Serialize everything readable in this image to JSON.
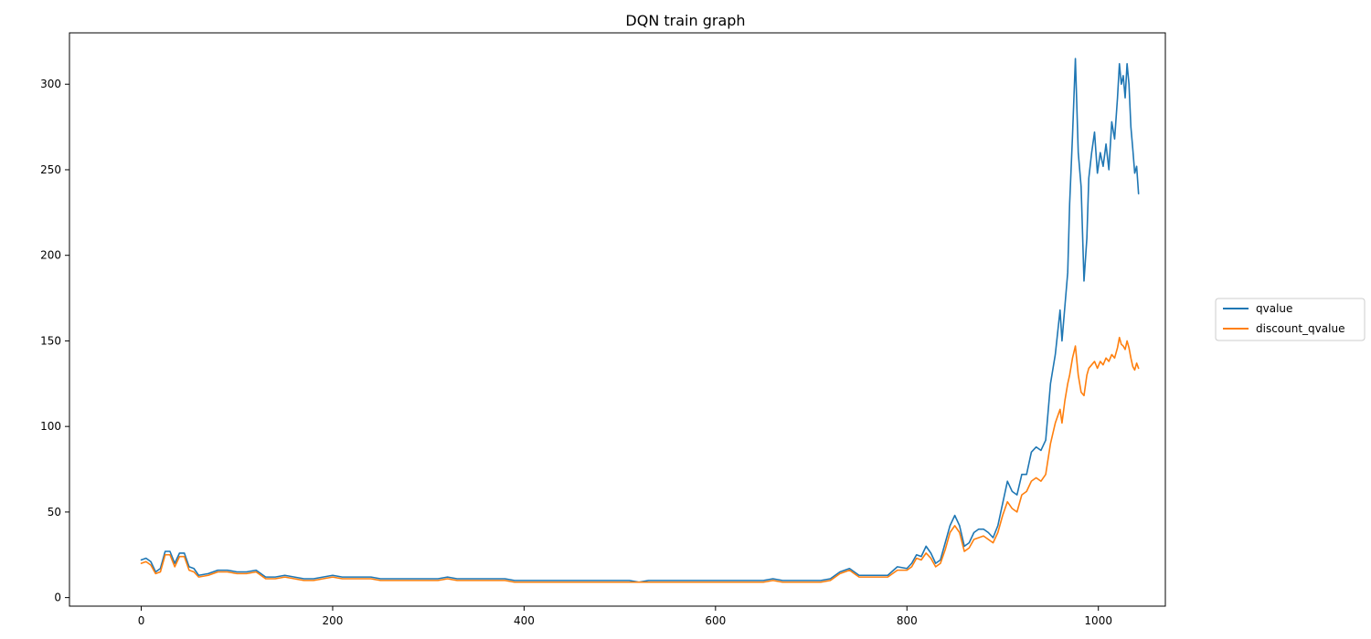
{
  "chart_data": {
    "type": "line",
    "title": "DQN train graph",
    "xlabel": "",
    "ylabel": "",
    "xlim": [
      -75,
      1070
    ],
    "ylim": [
      -5,
      330
    ],
    "xticks": [
      0,
      200,
      400,
      600,
      800,
      1000
    ],
    "yticks": [
      0,
      50,
      100,
      150,
      200,
      250,
      300
    ],
    "grid": false,
    "legend_position": "right, outside plot",
    "series": [
      {
        "name": "qvalue",
        "color": "#1f77b4",
        "points": [
          [
            0,
            22
          ],
          [
            5,
            23
          ],
          [
            10,
            21
          ],
          [
            15,
            15
          ],
          [
            20,
            17
          ],
          [
            25,
            27
          ],
          [
            30,
            27
          ],
          [
            35,
            20
          ],
          [
            40,
            26
          ],
          [
            45,
            26
          ],
          [
            50,
            18
          ],
          [
            55,
            17
          ],
          [
            60,
            13
          ],
          [
            70,
            14
          ],
          [
            80,
            16
          ],
          [
            90,
            16
          ],
          [
            100,
            15
          ],
          [
            110,
            15
          ],
          [
            120,
            16
          ],
          [
            130,
            12
          ],
          [
            140,
            12
          ],
          [
            150,
            13
          ],
          [
            160,
            12
          ],
          [
            170,
            11
          ],
          [
            180,
            11
          ],
          [
            190,
            12
          ],
          [
            200,
            13
          ],
          [
            210,
            12
          ],
          [
            220,
            12
          ],
          [
            230,
            12
          ],
          [
            240,
            12
          ],
          [
            250,
            11
          ],
          [
            260,
            11
          ],
          [
            270,
            11
          ],
          [
            280,
            11
          ],
          [
            290,
            11
          ],
          [
            300,
            11
          ],
          [
            310,
            11
          ],
          [
            320,
            12
          ],
          [
            330,
            11
          ],
          [
            340,
            11
          ],
          [
            350,
            11
          ],
          [
            360,
            11
          ],
          [
            370,
            11
          ],
          [
            380,
            11
          ],
          [
            390,
            10
          ],
          [
            400,
            10
          ],
          [
            410,
            10
          ],
          [
            420,
            10
          ],
          [
            430,
            10
          ],
          [
            440,
            10
          ],
          [
            450,
            10
          ],
          [
            460,
            10
          ],
          [
            470,
            10
          ],
          [
            480,
            10
          ],
          [
            490,
            10
          ],
          [
            500,
            10
          ],
          [
            510,
            10
          ],
          [
            520,
            9
          ],
          [
            530,
            10
          ],
          [
            540,
            10
          ],
          [
            550,
            10
          ],
          [
            560,
            10
          ],
          [
            570,
            10
          ],
          [
            580,
            10
          ],
          [
            590,
            10
          ],
          [
            600,
            10
          ],
          [
            610,
            10
          ],
          [
            620,
            10
          ],
          [
            630,
            10
          ],
          [
            640,
            10
          ],
          [
            650,
            10
          ],
          [
            660,
            11
          ],
          [
            670,
            10
          ],
          [
            680,
            10
          ],
          [
            690,
            10
          ],
          [
            700,
            10
          ],
          [
            710,
            10
          ],
          [
            720,
            11
          ],
          [
            730,
            15
          ],
          [
            740,
            17
          ],
          [
            750,
            13
          ],
          [
            760,
            13
          ],
          [
            770,
            13
          ],
          [
            780,
            13
          ],
          [
            790,
            18
          ],
          [
            800,
            17
          ],
          [
            805,
            20
          ],
          [
            810,
            25
          ],
          [
            815,
            24
          ],
          [
            820,
            30
          ],
          [
            825,
            26
          ],
          [
            830,
            20
          ],
          [
            835,
            22
          ],
          [
            840,
            32
          ],
          [
            845,
            42
          ],
          [
            850,
            48
          ],
          [
            855,
            42
          ],
          [
            860,
            30
          ],
          [
            865,
            32
          ],
          [
            870,
            38
          ],
          [
            875,
            40
          ],
          [
            880,
            40
          ],
          [
            885,
            38
          ],
          [
            890,
            35
          ],
          [
            895,
            42
          ],
          [
            900,
            55
          ],
          [
            905,
            68
          ],
          [
            910,
            62
          ],
          [
            915,
            60
          ],
          [
            920,
            72
          ],
          [
            925,
            72
          ],
          [
            930,
            85
          ],
          [
            935,
            88
          ],
          [
            940,
            86
          ],
          [
            945,
            92
          ],
          [
            950,
            125
          ],
          [
            955,
            142
          ],
          [
            960,
            168
          ],
          [
            962,
            150
          ],
          [
            965,
            170
          ],
          [
            968,
            190
          ],
          [
            970,
            230
          ],
          [
            973,
            270
          ],
          [
            976,
            315
          ],
          [
            979,
            260
          ],
          [
            982,
            240
          ],
          [
            985,
            185
          ],
          [
            988,
            210
          ],
          [
            990,
            245
          ],
          [
            993,
            260
          ],
          [
            996,
            272
          ],
          [
            999,
            248
          ],
          [
            1002,
            260
          ],
          [
            1005,
            252
          ],
          [
            1008,
            265
          ],
          [
            1011,
            250
          ],
          [
            1014,
            278
          ],
          [
            1017,
            268
          ],
          [
            1020,
            292
          ],
          [
            1022,
            312
          ],
          [
            1024,
            300
          ],
          [
            1026,
            305
          ],
          [
            1028,
            292
          ],
          [
            1030,
            312
          ],
          [
            1032,
            300
          ],
          [
            1034,
            275
          ],
          [
            1036,
            262
          ],
          [
            1038,
            248
          ],
          [
            1040,
            252
          ],
          [
            1042,
            236
          ]
        ]
      },
      {
        "name": "discount_qvalue",
        "color": "#ff7f0e",
        "points": [
          [
            0,
            20
          ],
          [
            5,
            21
          ],
          [
            10,
            19
          ],
          [
            15,
            14
          ],
          [
            20,
            15
          ],
          [
            25,
            25
          ],
          [
            30,
            25
          ],
          [
            35,
            18
          ],
          [
            40,
            24
          ],
          [
            45,
            24
          ],
          [
            50,
            16
          ],
          [
            55,
            15
          ],
          [
            60,
            12
          ],
          [
            70,
            13
          ],
          [
            80,
            15
          ],
          [
            90,
            15
          ],
          [
            100,
            14
          ],
          [
            110,
            14
          ],
          [
            120,
            15
          ],
          [
            130,
            11
          ],
          [
            140,
            11
          ],
          [
            150,
            12
          ],
          [
            160,
            11
          ],
          [
            170,
            10
          ],
          [
            180,
            10
          ],
          [
            190,
            11
          ],
          [
            200,
            12
          ],
          [
            210,
            11
          ],
          [
            220,
            11
          ],
          [
            230,
            11
          ],
          [
            240,
            11
          ],
          [
            250,
            10
          ],
          [
            260,
            10
          ],
          [
            270,
            10
          ],
          [
            280,
            10
          ],
          [
            290,
            10
          ],
          [
            300,
            10
          ],
          [
            310,
            10
          ],
          [
            320,
            11
          ],
          [
            330,
            10
          ],
          [
            340,
            10
          ],
          [
            350,
            10
          ],
          [
            360,
            10
          ],
          [
            370,
            10
          ],
          [
            380,
            10
          ],
          [
            390,
            9
          ],
          [
            400,
            9
          ],
          [
            410,
            9
          ],
          [
            420,
            9
          ],
          [
            430,
            9
          ],
          [
            440,
            9
          ],
          [
            450,
            9
          ],
          [
            460,
            9
          ],
          [
            470,
            9
          ],
          [
            480,
            9
          ],
          [
            490,
            9
          ],
          [
            500,
            9
          ],
          [
            510,
            9
          ],
          [
            520,
            9
          ],
          [
            530,
            9
          ],
          [
            540,
            9
          ],
          [
            550,
            9
          ],
          [
            560,
            9
          ],
          [
            570,
            9
          ],
          [
            580,
            9
          ],
          [
            590,
            9
          ],
          [
            600,
            9
          ],
          [
            610,
            9
          ],
          [
            620,
            9
          ],
          [
            630,
            9
          ],
          [
            640,
            9
          ],
          [
            650,
            9
          ],
          [
            660,
            10
          ],
          [
            670,
            9
          ],
          [
            680,
            9
          ],
          [
            690,
            9
          ],
          [
            700,
            9
          ],
          [
            710,
            9
          ],
          [
            720,
            10
          ],
          [
            730,
            14
          ],
          [
            740,
            16
          ],
          [
            750,
            12
          ],
          [
            760,
            12
          ],
          [
            770,
            12
          ],
          [
            780,
            12
          ],
          [
            790,
            16
          ],
          [
            800,
            16
          ],
          [
            805,
            18
          ],
          [
            810,
            23
          ],
          [
            815,
            22
          ],
          [
            820,
            26
          ],
          [
            825,
            23
          ],
          [
            830,
            18
          ],
          [
            835,
            20
          ],
          [
            840,
            28
          ],
          [
            845,
            38
          ],
          [
            850,
            42
          ],
          [
            855,
            38
          ],
          [
            860,
            27
          ],
          [
            865,
            29
          ],
          [
            870,
            34
          ],
          [
            875,
            35
          ],
          [
            880,
            36
          ],
          [
            885,
            34
          ],
          [
            890,
            32
          ],
          [
            895,
            38
          ],
          [
            900,
            48
          ],
          [
            905,
            56
          ],
          [
            910,
            52
          ],
          [
            915,
            50
          ],
          [
            920,
            60
          ],
          [
            925,
            62
          ],
          [
            930,
            68
          ],
          [
            935,
            70
          ],
          [
            940,
            68
          ],
          [
            945,
            72
          ],
          [
            950,
            90
          ],
          [
            955,
            102
          ],
          [
            960,
            110
          ],
          [
            962,
            102
          ],
          [
            965,
            115
          ],
          [
            968,
            125
          ],
          [
            970,
            130
          ],
          [
            973,
            140
          ],
          [
            976,
            147
          ],
          [
            979,
            130
          ],
          [
            982,
            120
          ],
          [
            985,
            118
          ],
          [
            988,
            130
          ],
          [
            990,
            134
          ],
          [
            993,
            136
          ],
          [
            996,
            138
          ],
          [
            999,
            134
          ],
          [
            1002,
            138
          ],
          [
            1005,
            136
          ],
          [
            1008,
            140
          ],
          [
            1011,
            138
          ],
          [
            1014,
            142
          ],
          [
            1017,
            140
          ],
          [
            1020,
            146
          ],
          [
            1022,
            152
          ],
          [
            1024,
            148
          ],
          [
            1026,
            147
          ],
          [
            1028,
            145
          ],
          [
            1030,
            150
          ],
          [
            1032,
            146
          ],
          [
            1034,
            140
          ],
          [
            1036,
            135
          ],
          [
            1038,
            133
          ],
          [
            1040,
            137
          ],
          [
            1042,
            134
          ]
        ]
      }
    ]
  }
}
